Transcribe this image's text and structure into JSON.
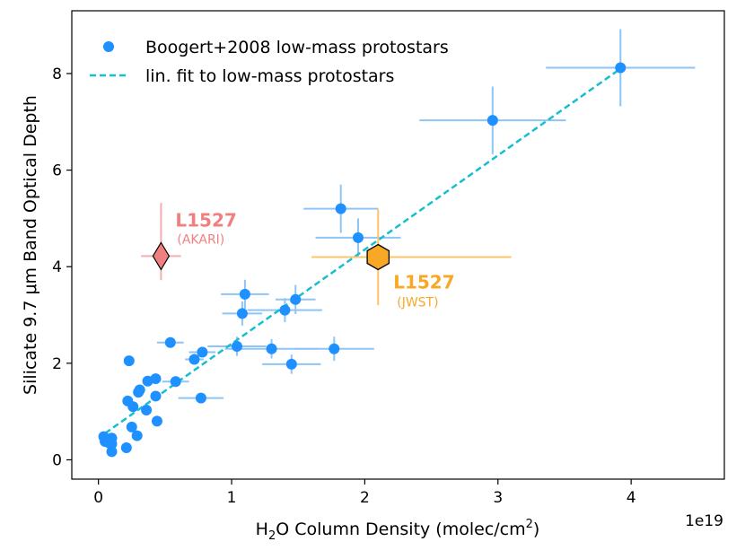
{
  "chart_data": {
    "type": "scatter",
    "xlabel_main": "H",
    "xlabel_sub": "2",
    "xlabel_rest": "O Column Density (molec/cm",
    "xlabel_sup": "2",
    "xlabel_end": ")",
    "ylabel": "Silicate 9.7 μm Band Optical Depth",
    "x_offset_label": "1e19",
    "xlim": [
      -0.2,
      4.7
    ],
    "ylim": [
      -0.4,
      9.3
    ],
    "xticks": [
      0,
      1,
      2,
      3,
      4
    ],
    "xtick_labels": [
      "0",
      "1",
      "2",
      "3",
      "4"
    ],
    "yticks": [
      0,
      2,
      4,
      6,
      8
    ],
    "ytick_labels": [
      "0",
      "2",
      "4",
      "6",
      "8"
    ],
    "legend": {
      "position": "upper-left",
      "entries": [
        {
          "label": "Boogert+2008 low-mass protostars",
          "marker": "circle"
        },
        {
          "label": "lin. fit to low-mass protostars",
          "marker": "dashed-line"
        }
      ]
    },
    "colors": {
      "points": "#1e90ff",
      "errorbars": "#8ec5f5",
      "fit": "#17becf",
      "akari": "#f08080",
      "akari_err": "#f4b0b0",
      "jwst": "#f9a825",
      "jwst_err": "#fbc46a"
    },
    "fit": {
      "x": [
        0.05,
        3.92
      ],
      "y": [
        0.55,
        8.1
      ]
    },
    "series": [
      {
        "name": "Boogert+2008 low-mass protostars",
        "points": [
          {
            "x": 0.04,
            "y": 0.48
          },
          {
            "x": 0.05,
            "y": 0.38
          },
          {
            "x": 0.08,
            "y": 0.35
          },
          {
            "x": 0.1,
            "y": 0.45
          },
          {
            "x": 0.1,
            "y": 0.33
          },
          {
            "x": 0.1,
            "y": 0.17
          },
          {
            "x": 0.21,
            "y": 0.25
          },
          {
            "x": 0.22,
            "y": 1.22
          },
          {
            "x": 0.23,
            "y": 2.05
          },
          {
            "x": 0.25,
            "y": 0.68
          },
          {
            "x": 0.26,
            "y": 1.1
          },
          {
            "x": 0.29,
            "y": 0.5
          },
          {
            "x": 0.3,
            "y": 1.4
          },
          {
            "x": 0.31,
            "y": 1.45
          },
          {
            "x": 0.36,
            "y": 1.03
          },
          {
            "x": 0.37,
            "y": 1.63
          },
          {
            "x": 0.43,
            "y": 1.68
          },
          {
            "x": 0.43,
            "y": 1.32
          },
          {
            "x": 0.44,
            "y": 0.8
          },
          {
            "x": 0.54,
            "y": 2.43,
            "xerr": 0.1
          },
          {
            "x": 0.58,
            "y": 1.62,
            "xerr": 0.1
          },
          {
            "x": 0.72,
            "y": 2.08,
            "xerr": 0.07
          },
          {
            "x": 0.77,
            "y": 1.28,
            "xerr": 0.17
          },
          {
            "x": 0.78,
            "y": 2.23,
            "xerr": 0.1
          },
          {
            "x": 1.04,
            "y": 2.35,
            "xerr": 0.22,
            "yerr": 0.2
          },
          {
            "x": 1.08,
            "y": 3.03,
            "xerr": 0.15,
            "yerr": 0.25
          },
          {
            "x": 1.1,
            "y": 3.43,
            "xerr": 0.18,
            "yerr": 0.3
          },
          {
            "x": 1.3,
            "y": 2.3,
            "xerr": 0.35,
            "yerr": 0.2
          },
          {
            "x": 1.4,
            "y": 3.1,
            "xerr": 0.28,
            "yerr": 0.25
          },
          {
            "x": 1.45,
            "y": 1.98,
            "xerr": 0.22,
            "yerr": 0.2
          },
          {
            "x": 1.48,
            "y": 3.32,
            "xerr": 0.15,
            "yerr": 0.3
          },
          {
            "x": 1.77,
            "y": 2.3,
            "xerr": 0.3,
            "yerr": 0.25
          },
          {
            "x": 1.82,
            "y": 5.2,
            "xerr": 0.28,
            "yerr": 0.5
          },
          {
            "x": 1.95,
            "y": 4.6,
            "xerr": 0.32,
            "yerr": 0.4
          },
          {
            "x": 2.96,
            "y": 7.03,
            "xerr": 0.55,
            "yerr": 0.7
          },
          {
            "x": 3.92,
            "y": 8.12,
            "xerr": 0.56,
            "yerr": 0.8
          }
        ]
      }
    ],
    "annotations": [
      {
        "name": "akari",
        "x": 0.47,
        "y": 4.22,
        "xerr": 0.15,
        "yerr_lo": 0.5,
        "yerr_hi": 1.1,
        "marker": "diamond",
        "label": "L1527",
        "sublabel": "(AKARI)"
      },
      {
        "name": "jwst",
        "x": 2.1,
        "y": 4.2,
        "xerr_lo": 0.5,
        "xerr_hi": 1.0,
        "yerr": 1.0,
        "marker": "hexagon",
        "label": "L1527",
        "sublabel": "(JWST)"
      }
    ]
  }
}
